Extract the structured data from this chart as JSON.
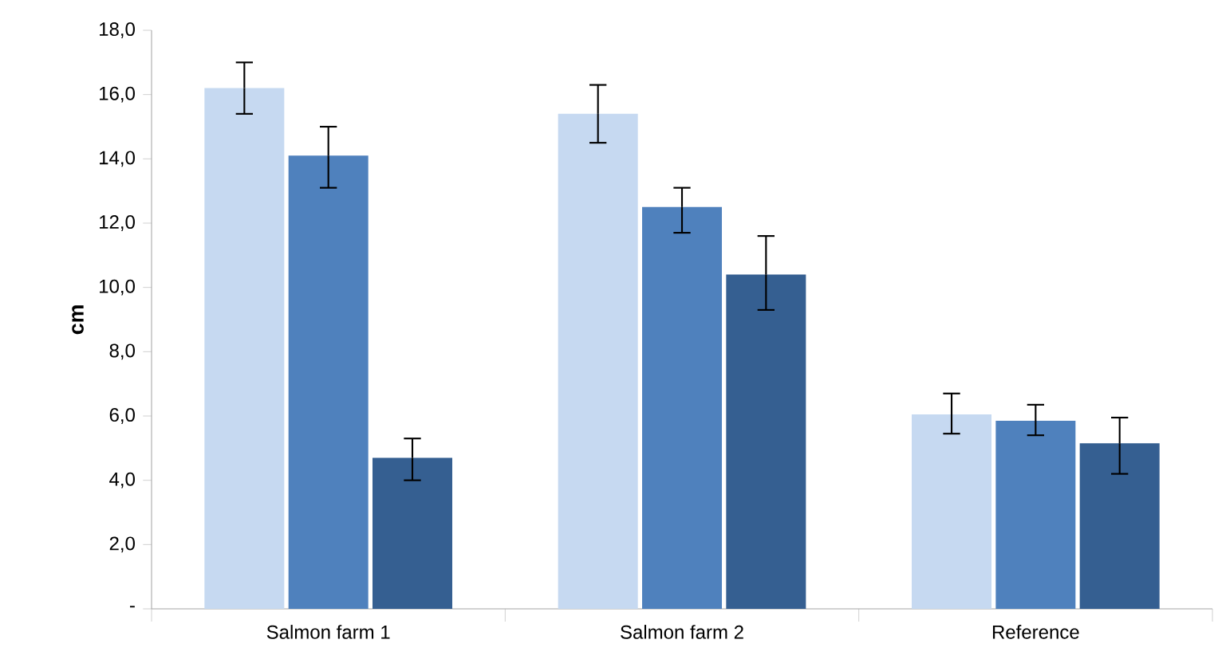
{
  "chart_data": {
    "type": "bar",
    "ylabel": "cm",
    "categories": [
      "Salmon farm 1",
      "Salmon farm 2",
      "Reference"
    ],
    "series": [
      {
        "color": "#c6d9f1",
        "values": [
          16.2,
          15.4,
          6.05
        ],
        "errors": [
          [
            15.4,
            17.0
          ],
          [
            14.5,
            16.3
          ],
          [
            5.45,
            6.7
          ]
        ]
      },
      {
        "color": "#4f81bd",
        "values": [
          14.1,
          12.5,
          5.85
        ],
        "errors": [
          [
            13.1,
            15.0
          ],
          [
            11.7,
            13.1
          ],
          [
            5.4,
            6.35
          ]
        ]
      },
      {
        "color": "#355f91",
        "values": [
          4.7,
          10.4,
          5.15
        ],
        "errors": [
          [
            4.0,
            5.3
          ],
          [
            9.3,
            11.6
          ],
          [
            4.2,
            5.95
          ]
        ]
      }
    ],
    "ylim": [
      0,
      18
    ],
    "yticks": [
      {
        "value": 0,
        "label": "-"
      },
      {
        "value": 2,
        "label": "2,0"
      },
      {
        "value": 4,
        "label": "4,0"
      },
      {
        "value": 6,
        "label": "6,0"
      },
      {
        "value": 8,
        "label": "8,0"
      },
      {
        "value": 10,
        "label": "10,0"
      },
      {
        "value": 12,
        "label": "12,0"
      },
      {
        "value": 14,
        "label": "14,0"
      },
      {
        "value": 16,
        "label": "16,0"
      },
      {
        "value": 18,
        "label": "18,0"
      }
    ],
    "tick_labels": "xy"
  }
}
